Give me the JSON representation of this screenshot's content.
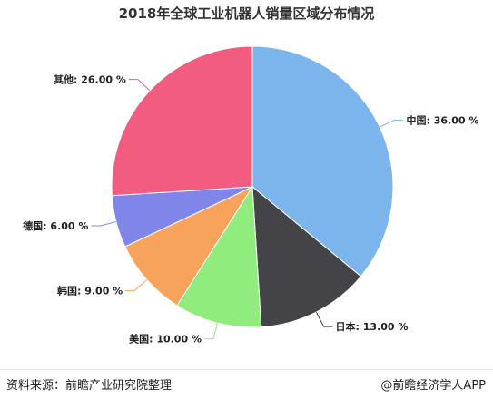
{
  "title": "2018年全球工业机器人销量区域分布情况",
  "footer": {
    "source": "资料来源：前瞻产业研究院整理",
    "brand": "@前瞻经济学人APP"
  },
  "chart_data": {
    "type": "pie",
    "title": "2018年全球工业机器人销量区域分布情况",
    "slices": [
      {
        "name": "中国",
        "value": 36.0,
        "label": "中国: 36.00 %",
        "color": "#7cb5ec"
      },
      {
        "name": "日本",
        "value": 13.0,
        "label": "日本: 13.00 %",
        "color": "#434348"
      },
      {
        "name": "美国",
        "value": 10.0,
        "label": "美国: 10.00 %",
        "color": "#90ed7d"
      },
      {
        "name": "韩国",
        "value": 9.0,
        "label": "韩国: 9.00 %",
        "color": "#f7a35c"
      },
      {
        "name": "德国",
        "value": 6.0,
        "label": "德国: 6.00 %",
        "color": "#8085e9"
      },
      {
        "name": "其他",
        "value": 26.0,
        "label": "其他: 26.00 %",
        "color": "#f15c80"
      }
    ]
  }
}
